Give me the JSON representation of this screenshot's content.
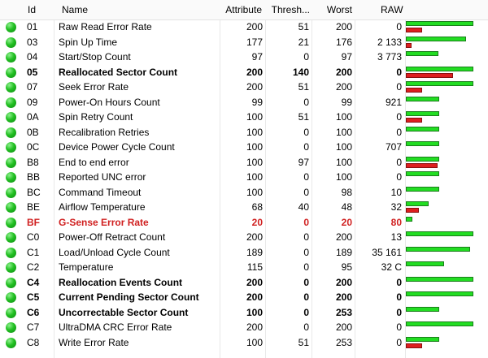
{
  "columns": {
    "id": "Id",
    "name": "Name",
    "attribute": "Attribute",
    "threshold": "Thresh...",
    "worst": "Worst",
    "raw": "RAW"
  },
  "rows": [
    {
      "id": "01",
      "name": "Raw Read Error Rate",
      "attribute": "200",
      "threshold": "51",
      "worst": "200",
      "raw": "0",
      "style": "normal",
      "green_level": 0.83,
      "red_level": 0.2
    },
    {
      "id": "03",
      "name": "Spin Up Time",
      "attribute": "177",
      "threshold": "21",
      "worst": "176",
      "raw": "2 133",
      "style": "normal",
      "green_level": 0.74,
      "red_level": 0.07
    },
    {
      "id": "04",
      "name": "Start/Stop Count",
      "attribute": "97",
      "threshold": "0",
      "worst": "97",
      "raw": "3 773",
      "style": "normal",
      "green_level": 0.4,
      "red_level": 0.0
    },
    {
      "id": "05",
      "name": "Reallocated Sector Count",
      "attribute": "200",
      "threshold": "140",
      "worst": "200",
      "raw": "0",
      "style": "bold",
      "green_level": 0.83,
      "red_level": 0.58
    },
    {
      "id": "07",
      "name": "Seek Error Rate",
      "attribute": "200",
      "threshold": "51",
      "worst": "200",
      "raw": "0",
      "style": "normal",
      "green_level": 0.83,
      "red_level": 0.2
    },
    {
      "id": "09",
      "name": "Power-On Hours Count",
      "attribute": "99",
      "threshold": "0",
      "worst": "99",
      "raw": "921",
      "style": "normal",
      "green_level": 0.41,
      "red_level": 0.0
    },
    {
      "id": "0A",
      "name": "Spin Retry Count",
      "attribute": "100",
      "threshold": "51",
      "worst": "100",
      "raw": "0",
      "style": "normal",
      "green_level": 0.41,
      "red_level": 0.2
    },
    {
      "id": "0B",
      "name": "Recalibration Retries",
      "attribute": "100",
      "threshold": "0",
      "worst": "100",
      "raw": "0",
      "style": "normal",
      "green_level": 0.41,
      "red_level": 0.0
    },
    {
      "id": "0C",
      "name": "Device Power Cycle Count",
      "attribute": "100",
      "threshold": "0",
      "worst": "100",
      "raw": "707",
      "style": "normal",
      "green_level": 0.41,
      "red_level": 0.0
    },
    {
      "id": "B8",
      "name": "End to end error",
      "attribute": "100",
      "threshold": "97",
      "worst": "100",
      "raw": "0",
      "style": "normal",
      "green_level": 0.41,
      "red_level": 0.39
    },
    {
      "id": "BB",
      "name": "Reported UNC error",
      "attribute": "100",
      "threshold": "0",
      "worst": "100",
      "raw": "0",
      "style": "normal",
      "green_level": 0.41,
      "red_level": 0.0
    },
    {
      "id": "BC",
      "name": "Command Timeout",
      "attribute": "100",
      "threshold": "0",
      "worst": "98",
      "raw": "10",
      "style": "normal",
      "green_level": 0.41,
      "red_level": 0.0
    },
    {
      "id": "BE",
      "name": "Airflow Temperature",
      "attribute": "68",
      "threshold": "40",
      "worst": "48",
      "raw": "32",
      "style": "normal",
      "green_level": 0.28,
      "red_level": 0.16
    },
    {
      "id": "BF",
      "name": "G-Sense Error Rate",
      "attribute": "20",
      "threshold": "0",
      "worst": "20",
      "raw": "80",
      "style": "warn",
      "green_level": 0.08,
      "red_level": 0.0
    },
    {
      "id": "C0",
      "name": "Power-Off Retract Count",
      "attribute": "200",
      "threshold": "0",
      "worst": "200",
      "raw": "13",
      "style": "normal",
      "green_level": 0.83,
      "red_level": 0.0
    },
    {
      "id": "C1",
      "name": "Load/Unload Cycle Count",
      "attribute": "189",
      "threshold": "0",
      "worst": "189",
      "raw": "35 161",
      "style": "normal",
      "green_level": 0.79,
      "red_level": 0.0
    },
    {
      "id": "C2",
      "name": "Temperature",
      "attribute": "115",
      "threshold": "0",
      "worst": "95",
      "raw": "32 C",
      "style": "normal",
      "green_level": 0.47,
      "red_level": 0.0
    },
    {
      "id": "C4",
      "name": "Reallocation Events Count",
      "attribute": "200",
      "threshold": "0",
      "worst": "200",
      "raw": "0",
      "style": "bold",
      "green_level": 0.83,
      "red_level": 0.0
    },
    {
      "id": "C5",
      "name": "Current Pending Sector Count",
      "attribute": "200",
      "threshold": "0",
      "worst": "200",
      "raw": "0",
      "style": "bold",
      "green_level": 0.83,
      "red_level": 0.0
    },
    {
      "id": "C6",
      "name": "Uncorrectable Sector Count",
      "attribute": "100",
      "threshold": "0",
      "worst": "253",
      "raw": "0",
      "style": "bold",
      "green_level": 0.41,
      "red_level": 0.0
    },
    {
      "id": "C7",
      "name": "UltraDMA CRC Error Rate",
      "attribute": "200",
      "threshold": "0",
      "worst": "200",
      "raw": "0",
      "style": "normal",
      "green_level": 0.83,
      "red_level": 0.0
    },
    {
      "id": "C8",
      "name": "Write Error Rate",
      "attribute": "100",
      "threshold": "51",
      "worst": "253",
      "raw": "0",
      "style": "normal",
      "green_level": 0.41,
      "red_level": 0.2
    }
  ],
  "colors": {
    "status_ok": "#22c022",
    "bar_green": "#22dd22",
    "bar_red": "#dd1f1f",
    "warning_text": "#d02020"
  }
}
